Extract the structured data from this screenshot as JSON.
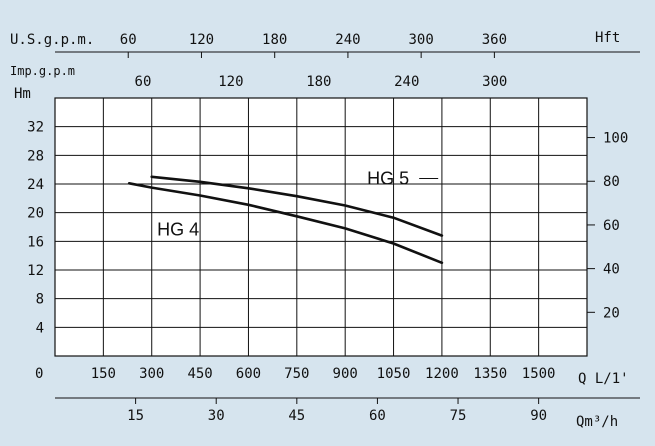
{
  "chart_data": {
    "type": "line",
    "background": "#d6e4ee",
    "grid": true,
    "axes": {
      "y_left": {
        "label": "Hm",
        "ticks": [
          "4",
          "8",
          "12",
          "16",
          "20",
          "24",
          "28",
          "32"
        ],
        "range": [
          0,
          36
        ]
      },
      "y_right": {
        "label": "Hft",
        "ticks": [
          "20",
          "40",
          "60",
          "80",
          "100"
        ]
      },
      "x_main": {
        "label": "Q L/1'",
        "origin_label": "0",
        "ticks": [
          "150",
          "300",
          "450",
          "600",
          "750",
          "900",
          "1050",
          "1200",
          "1350",
          "1500"
        ],
        "range": [
          0,
          1650
        ]
      },
      "x_usgpm": {
        "label": "U.S.g.p.m.",
        "ticks": [
          "60",
          "120",
          "180",
          "240",
          "300",
          "360"
        ]
      },
      "x_impgpm": {
        "label": "Imp.g.p.m",
        "ticks": [
          "60",
          "120",
          "180",
          "240",
          "300"
        ]
      },
      "x_m3h": {
        "label": "Qm³/h",
        "ticks": [
          "15",
          "30",
          "45",
          "60",
          "75",
          "90"
        ]
      }
    },
    "series": [
      {
        "name": "HG 4",
        "points": [
          [
            230,
            24.1
          ],
          [
            300,
            23.5
          ],
          [
            450,
            22.4
          ],
          [
            600,
            21.1
          ],
          [
            750,
            19.5
          ],
          [
            900,
            17.8
          ],
          [
            1050,
            15.7
          ],
          [
            1200,
            13.0
          ]
        ]
      },
      {
        "name": "HG 5",
        "points": [
          [
            300,
            25.0
          ],
          [
            450,
            24.3
          ],
          [
            600,
            23.4
          ],
          [
            750,
            22.3
          ],
          [
            900,
            21.0
          ],
          [
            1050,
            19.3
          ],
          [
            1200,
            16.8
          ]
        ]
      }
    ]
  }
}
